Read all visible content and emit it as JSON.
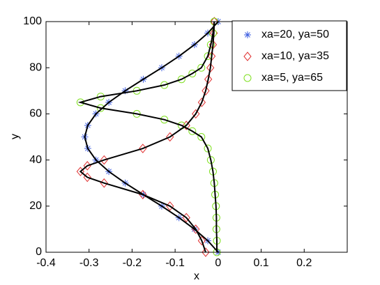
{
  "chart_data": {
    "type": "scatter",
    "xlabel": "x",
    "ylabel": "y",
    "xlim": [
      -0.4,
      0.3
    ],
    "ylim": [
      0,
      100
    ],
    "xticks": [
      -0.4,
      -0.3,
      -0.2,
      -0.1,
      0,
      0.1,
      0.2
    ],
    "yticks": [
      0,
      20,
      40,
      60,
      80,
      100
    ],
    "legend": "upper right",
    "line_color": "#000000",
    "series": [
      {
        "name": "xa=20, ya=50",
        "color": "#3f5fe0",
        "marker": "asterisk",
        "y": [
          0,
          5,
          10,
          15,
          20,
          25,
          30,
          35,
          40,
          45,
          50,
          55,
          60,
          65,
          70,
          75,
          80,
          85,
          90,
          95,
          100
        ],
        "x": [
          0,
          -0.024,
          -0.055,
          -0.091,
          -0.131,
          -0.174,
          -0.216,
          -0.254,
          -0.284,
          -0.303,
          -0.31,
          -0.303,
          -0.284,
          -0.254,
          -0.216,
          -0.174,
          -0.131,
          -0.091,
          -0.055,
          -0.024,
          0
        ]
      },
      {
        "name": "xa=10, ya=35",
        "color": "#e03030",
        "marker": "diamond",
        "y": [
          0,
          5,
          10,
          15,
          20,
          25,
          30,
          32.5,
          35,
          37.5,
          40,
          45,
          50,
          55,
          60,
          65,
          70,
          75,
          80,
          85,
          90,
          95,
          100
        ],
        "x": [
          -0.029,
          -0.038,
          -0.052,
          -0.074,
          -0.112,
          -0.175,
          -0.265,
          -0.304,
          -0.32,
          -0.304,
          -0.265,
          -0.175,
          -0.112,
          -0.074,
          -0.052,
          -0.038,
          -0.029,
          -0.023,
          -0.018,
          -0.015,
          -0.012,
          -0.01,
          -0.009
        ]
      },
      {
        "name": "xa=5, ya=65",
        "color": "#7fe020",
        "marker": "circle",
        "y": [
          0,
          5,
          10,
          15,
          20,
          25,
          30,
          35,
          40,
          45,
          50,
          52.5,
          55,
          57.5,
          60,
          62.5,
          65,
          67.5,
          70,
          72.5,
          75,
          77.5,
          80,
          85,
          90,
          95,
          100
        ],
        "x": [
          -0.003,
          -0.003,
          -0.004,
          -0.004,
          -0.005,
          -0.007,
          -0.009,
          -0.012,
          -0.017,
          -0.024,
          -0.039,
          -0.06,
          -0.085,
          -0.125,
          -0.189,
          -0.273,
          -0.32,
          -0.273,
          -0.189,
          -0.125,
          -0.085,
          -0.06,
          -0.039,
          -0.024,
          -0.017,
          -0.012,
          -0.009
        ]
      }
    ]
  }
}
